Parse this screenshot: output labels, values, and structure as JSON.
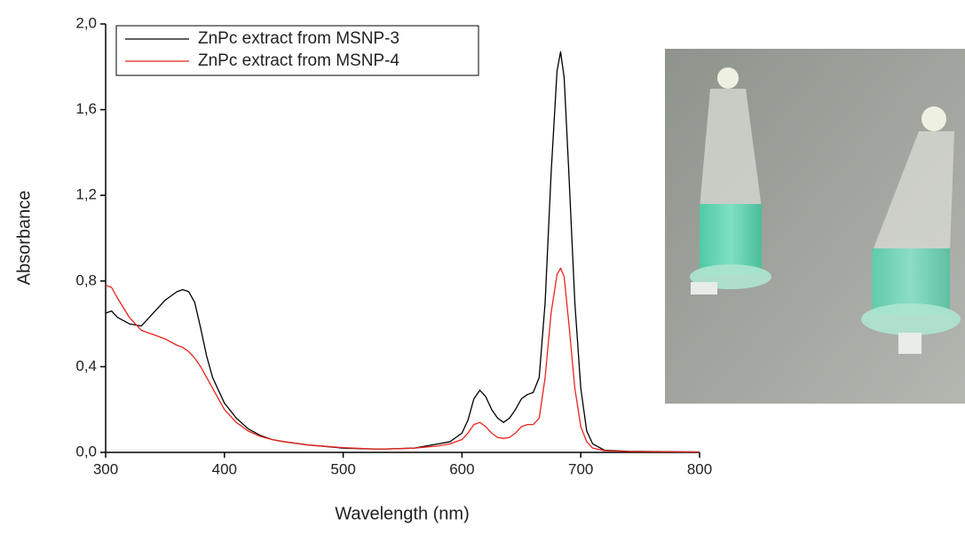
{
  "chart_data": {
    "type": "line",
    "x_label": "Wavelength (nm)",
    "y_label": "Absorbance",
    "xlim": [
      300,
      800
    ],
    "ylim": [
      0,
      2.0
    ],
    "xticks": [
      300,
      400,
      500,
      600,
      700,
      800
    ],
    "yticks": [
      {
        "value": 0,
        "label": "0,0"
      },
      {
        "value": 0.4,
        "label": "0,4"
      },
      {
        "value": 0.8,
        "label": "0,8"
      },
      {
        "value": 1.2,
        "label": "1,2"
      },
      {
        "value": 1.6,
        "label": "1,6"
      },
      {
        "value": 2.0,
        "label": "2,0"
      }
    ],
    "legend_position": "upper left",
    "x": [
      300,
      305,
      310,
      320,
      330,
      340,
      350,
      360,
      365,
      370,
      375,
      380,
      385,
      390,
      400,
      410,
      420,
      430,
      440,
      450,
      470,
      500,
      530,
      560,
      580,
      590,
      600,
      605,
      610,
      615,
      620,
      625,
      630,
      635,
      640,
      645,
      650,
      655,
      660,
      665,
      670,
      675,
      680,
      683,
      686,
      690,
      695,
      700,
      705,
      710,
      720,
      740,
      800
    ],
    "series": [
      {
        "name": "ZnPc extract from MSNP-3",
        "color": "#000000",
        "values": [
          0.65,
          0.66,
          0.63,
          0.6,
          0.59,
          0.65,
          0.71,
          0.75,
          0.76,
          0.75,
          0.7,
          0.58,
          0.45,
          0.35,
          0.23,
          0.16,
          0.11,
          0.08,
          0.06,
          0.05,
          0.035,
          0.02,
          0.015,
          0.02,
          0.04,
          0.05,
          0.09,
          0.15,
          0.25,
          0.29,
          0.26,
          0.2,
          0.16,
          0.14,
          0.16,
          0.2,
          0.25,
          0.27,
          0.28,
          0.35,
          0.7,
          1.3,
          1.78,
          1.87,
          1.75,
          1.3,
          0.7,
          0.3,
          0.1,
          0.04,
          0.01,
          0.005,
          0.002
        ]
      },
      {
        "name": "ZnPc extract from MSNP-4",
        "color": "#e8251f",
        "values": [
          0.78,
          0.77,
          0.72,
          0.63,
          0.57,
          0.55,
          0.53,
          0.5,
          0.49,
          0.47,
          0.44,
          0.4,
          0.35,
          0.3,
          0.2,
          0.14,
          0.1,
          0.075,
          0.06,
          0.05,
          0.035,
          0.022,
          0.015,
          0.02,
          0.03,
          0.04,
          0.06,
          0.09,
          0.13,
          0.14,
          0.12,
          0.09,
          0.07,
          0.065,
          0.07,
          0.09,
          0.12,
          0.13,
          0.13,
          0.16,
          0.35,
          0.65,
          0.83,
          0.86,
          0.82,
          0.6,
          0.3,
          0.12,
          0.05,
          0.02,
          0.008,
          0.004,
          0.002
        ]
      }
    ]
  }
}
